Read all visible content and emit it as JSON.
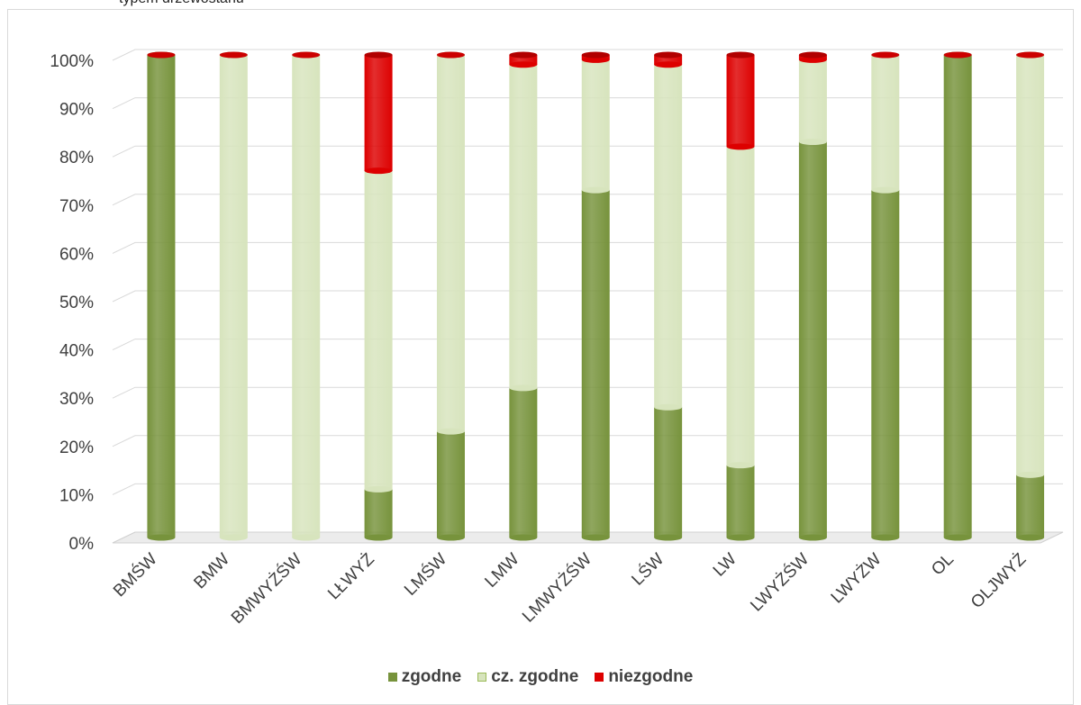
{
  "page": {
    "caption": "typem drzewostanu"
  },
  "colors": {
    "zgodne": "#77933c",
    "cz_zgodne": "#d7e4bd",
    "niezgodne": "#dd0000",
    "grid": "#d9d9d9",
    "axis_text": "#404040"
  },
  "chart_data": {
    "type": "bar",
    "stacked": true,
    "percent_stacked": true,
    "title": "",
    "xlabel": "",
    "ylabel": "",
    "ylim": [
      0,
      100
    ],
    "y_ticks": [
      "0%",
      "10%",
      "20%",
      "30%",
      "40%",
      "50%",
      "60%",
      "70%",
      "80%",
      "90%",
      "100%"
    ],
    "categories": [
      "BMŚW",
      "BMW",
      "BMWYŻŚW",
      "LŁWYŻ",
      "LMŚW",
      "LMW",
      "LMWYŻŚW",
      "LŚW",
      "LW",
      "LWYŻŚW",
      "LWYŻW",
      "OL",
      "OLJWYŻ"
    ],
    "series": [
      {
        "name": "zgodne",
        "color": "#77933c",
        "values": [
          100,
          0,
          0,
          10,
          22,
          31,
          72,
          27,
          15,
          82,
          72,
          100,
          13
        ]
      },
      {
        "name": "cz. zgodne",
        "color": "#d7e4bd",
        "values": [
          0,
          100,
          100,
          66,
          78,
          67,
          27,
          71,
          66,
          17,
          28,
          0,
          87
        ]
      },
      {
        "name": "niezgodne",
        "color": "#dd0000",
        "values": [
          0,
          0,
          0,
          24,
          0,
          2,
          1,
          2,
          19,
          1,
          0,
          0,
          0
        ]
      }
    ],
    "grid": true,
    "legend_position": "bottom"
  }
}
